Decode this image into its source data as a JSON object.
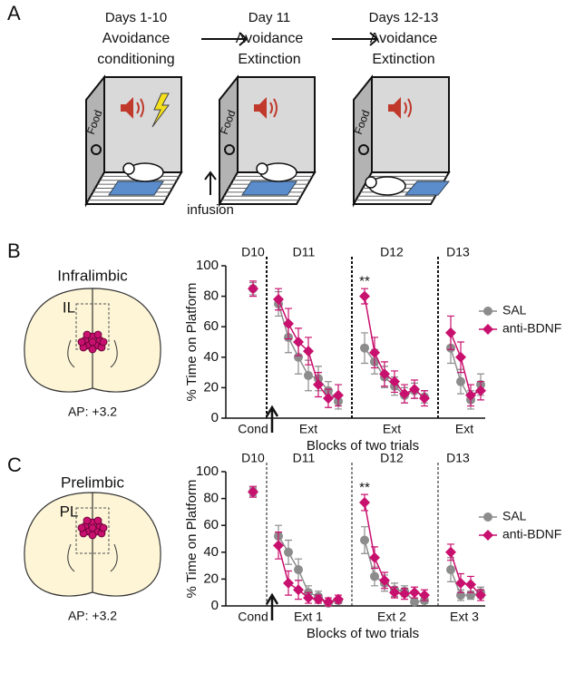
{
  "panel_a": {
    "letter": "A",
    "stages": [
      {
        "days": "Days 1-10",
        "line1": "Avoidance",
        "line2": "conditioning"
      },
      {
        "days": "Day 11",
        "line1": "Avoidance",
        "line2": "Extinction"
      },
      {
        "days": "Days 12-13",
        "line1": "Avoidance",
        "line2": "Extinction"
      }
    ],
    "food": "Food",
    "infusion": "infusion"
  },
  "panels": [
    {
      "letter": "B",
      "region": "Infralimbic",
      "abbrev": "IL",
      "ap": "AP: +3.2"
    },
    {
      "letter": "C",
      "region": "Prelimbic",
      "abbrev": "PL",
      "ap": "AP: +3.2"
    }
  ],
  "chart_data": [
    {
      "type": "line",
      "y_label": "% Time on Platform",
      "x_label": "Blocks of two trials",
      "days": [
        "D10",
        "D11",
        "D12",
        "D13"
      ],
      "group_labels": [
        "Cond",
        "Ext",
        "Ext",
        "Ext"
      ],
      "annotation": "**",
      "ylim": [
        0,
        100
      ],
      "yticks": [
        0,
        20,
        40,
        60,
        80,
        100
      ],
      "series": [
        {
          "name": "SAL",
          "color": "#8c8c8c",
          "marker": "circle",
          "values": [
            [
              85
            ],
            [
              75,
              53,
              40,
              28,
              26,
              18,
              11
            ],
            [
              46,
              37,
              27,
              21,
              15,
              18,
              14
            ],
            [
              46,
              24,
              12,
              22
            ]
          ],
          "errors": [
            [
              4
            ],
            [
              8,
              10,
              11,
              10,
              8,
              6,
              5
            ],
            [
              10,
              8,
              7,
              6,
              5,
              5,
              4
            ],
            [
              10,
              8,
              6,
              7
            ]
          ]
        },
        {
          "name": "anti-BDNF",
          "color": "#c8106e",
          "marker": "diamond",
          "values": [
            [
              85
            ],
            [
              78,
              62,
              50,
              44,
              22,
              13,
              15
            ],
            [
              80,
              43,
              29,
              24,
              16,
              19,
              13
            ],
            [
              56,
              40,
              15,
              18
            ]
          ],
          "errors": [
            [
              5
            ],
            [
              7,
              10,
              9,
              9,
              8,
              6,
              7
            ],
            [
              5,
              10,
              8,
              7,
              6,
              6,
              5
            ],
            [
              11,
              10,
              7,
              6
            ]
          ]
        }
      ]
    },
    {
      "type": "line",
      "y_label": "% Time on Platform",
      "x_label": "Blocks of two trials",
      "days": [
        "D10",
        "D11",
        "D12",
        "D13"
      ],
      "group_labels": [
        "Cond",
        "Ext 1",
        "Ext 2",
        "Ext 3"
      ],
      "annotation": "**",
      "ylim": [
        0,
        100
      ],
      "yticks": [
        0,
        20,
        40,
        60,
        80,
        100
      ],
      "series": [
        {
          "name": "SAL",
          "color": "#8c8c8c",
          "marker": "circle",
          "values": [
            [
              85
            ],
            [
              52,
              40,
              27,
              10,
              7,
              2,
              4
            ],
            [
              49,
              22,
              17,
              12,
              11,
              3,
              4
            ],
            [
              27,
              8,
              8,
              10
            ]
          ],
          "errors": [
            [
              3
            ],
            [
              8,
              9,
              8,
              5,
              4,
              2,
              2
            ],
            [
              10,
              7,
              6,
              5,
              4,
              2,
              2
            ],
            [
              9,
              4,
              3,
              4
            ]
          ]
        },
        {
          "name": "anti-BDNF",
          "color": "#c8106e",
          "marker": "diamond",
          "values": [
            [
              85
            ],
            [
              45,
              17,
              12,
              6,
              5,
              3,
              5
            ],
            [
              77,
              36,
              19,
              10,
              9,
              10,
              8
            ],
            [
              40,
              17,
              16,
              8
            ]
          ],
          "errors": [
            [
              4
            ],
            [
              10,
              9,
              7,
              4,
              3,
              3,
              3
            ],
            [
              6,
              8,
              6,
              4,
              4,
              4,
              4
            ],
            [
              6,
              7,
              6,
              4
            ]
          ]
        }
      ]
    }
  ]
}
